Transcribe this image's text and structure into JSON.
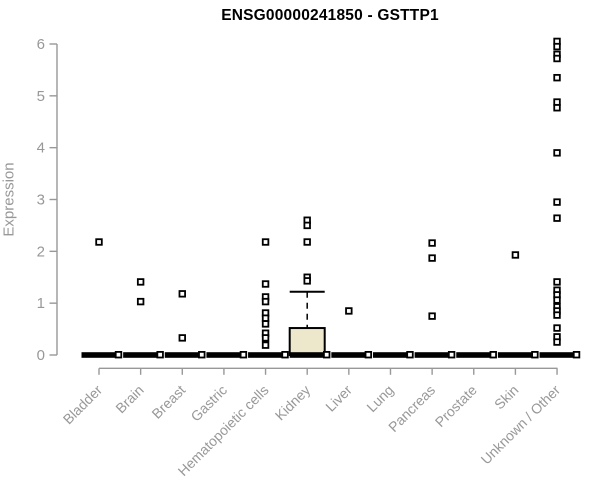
{
  "chart_data": {
    "type": "box",
    "title": "ENSG00000241850 - GSTTP1",
    "xlabel": "",
    "ylabel": "Expression",
    "ylim": [
      0,
      6
    ],
    "yticks": [
      0,
      1,
      2,
      3,
      4,
      5,
      6
    ],
    "grid": false,
    "legend": "none",
    "point_marker": "open-square",
    "categories": [
      "Bladder",
      "Brain",
      "Breast",
      "Gastric",
      "Hematopoietic cells",
      "Kidney",
      "Liver",
      "Lung",
      "Pancreas",
      "Prostate",
      "Skin",
      "Unknown / Other"
    ],
    "boxes": [
      {
        "category": "Bladder",
        "median": 0,
        "q1": 0,
        "q3": 0,
        "whisker_low": 0,
        "whisker_high": 0,
        "outliers": [
          2.18
        ]
      },
      {
        "category": "Brain",
        "median": 0,
        "q1": 0,
        "q3": 0,
        "whisker_low": 0,
        "whisker_high": 0,
        "outliers": [
          1.41,
          1.03
        ]
      },
      {
        "category": "Breast",
        "median": 0,
        "q1": 0,
        "q3": 0,
        "whisker_low": 0,
        "whisker_high": 0,
        "outliers": [
          1.18,
          0.33
        ]
      },
      {
        "category": "Gastric",
        "median": 0,
        "q1": 0,
        "q3": 0,
        "whisker_low": 0,
        "whisker_high": 0,
        "outliers": []
      },
      {
        "category": "Hematopoietic cells",
        "median": 0,
        "q1": 0,
        "q3": 0,
        "whisker_low": 0,
        "whisker_high": 0,
        "outliers": [
          2.18,
          1.37,
          1.12,
          1.03,
          0.81,
          0.71,
          0.6,
          0.42,
          0.33,
          0.19
        ]
      },
      {
        "category": "Kidney",
        "median": 0,
        "q1": 0,
        "q3": 0.52,
        "whisker_low": 0,
        "whisker_high": 1.22,
        "outliers": [
          2.6,
          2.5,
          2.18,
          1.5,
          1.43
        ]
      },
      {
        "category": "Liver",
        "median": 0,
        "q1": 0,
        "q3": 0,
        "whisker_low": 0,
        "whisker_high": 0,
        "outliers": [
          0.85
        ]
      },
      {
        "category": "Lung",
        "median": 0,
        "q1": 0,
        "q3": 0,
        "whisker_low": 0,
        "whisker_high": 0,
        "outliers": []
      },
      {
        "category": "Pancreas",
        "median": 0,
        "q1": 0,
        "q3": 0,
        "whisker_low": 0,
        "whisker_high": 0,
        "outliers": [
          2.16,
          1.87,
          0.75
        ]
      },
      {
        "category": "Prostate",
        "median": 0,
        "q1": 0,
        "q3": 0,
        "whisker_low": 0,
        "whisker_high": 0,
        "outliers": []
      },
      {
        "category": "Skin",
        "median": 0,
        "q1": 0,
        "q3": 0,
        "whisker_low": 0,
        "whisker_high": 0,
        "outliers": [
          1.93
        ]
      },
      {
        "category": "Unknown / Other",
        "median": 0,
        "q1": 0,
        "q3": 0,
        "whisker_low": 0,
        "whisker_high": 0,
        "outliers": [
          6.05,
          5.95,
          5.8,
          5.72,
          5.35,
          4.88,
          4.77,
          3.9,
          2.95,
          2.64,
          1.41,
          1.25,
          1.16,
          1.06,
          0.93,
          0.85,
          0.77,
          0.52,
          0.35,
          0.25
        ]
      }
    ],
    "colors": {
      "title": "#000000",
      "axis": "#989898",
      "tick_label": "#989898",
      "category_label": "#989898",
      "point_stroke": "#000000",
      "point_fill": "#ffffff",
      "zero_bar": "#000000",
      "box_fill": "#ede8cc",
      "box_stroke": "#000000",
      "whisker": "#000000"
    }
  }
}
